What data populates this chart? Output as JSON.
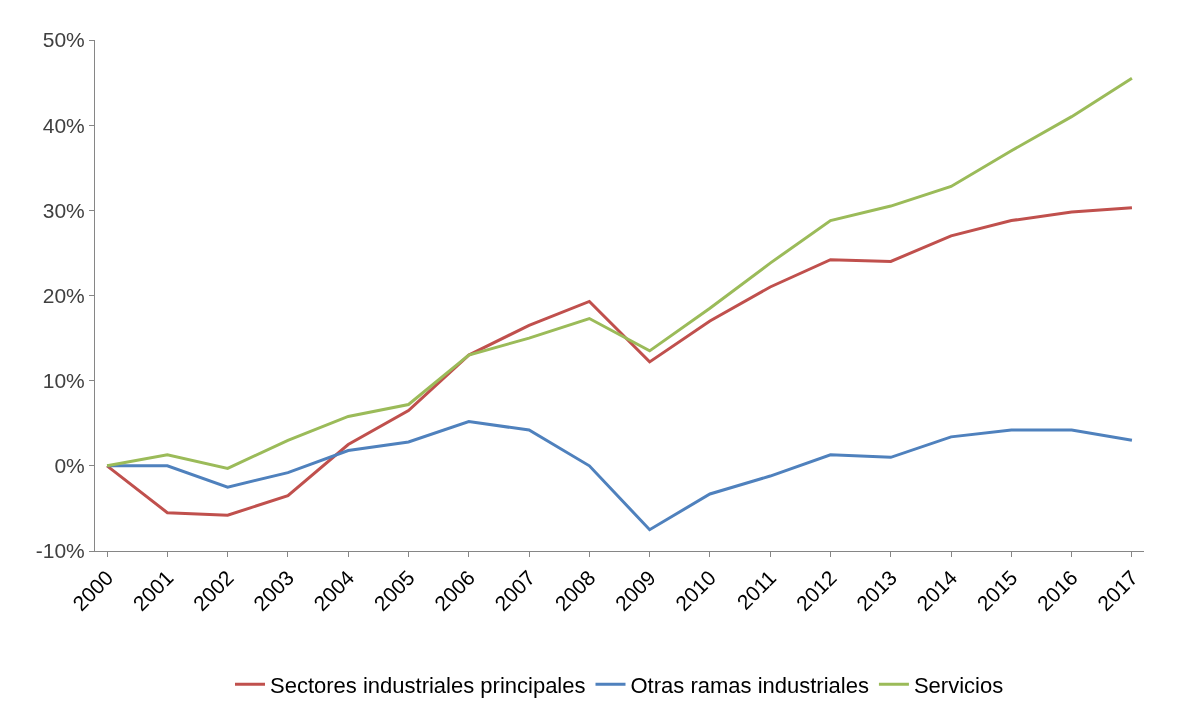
{
  "chart_data": {
    "type": "line",
    "categories": [
      "2000",
      "2001",
      "2002",
      "2003",
      "2004",
      "2005",
      "2006",
      "2007",
      "2008",
      "2009",
      "2010",
      "2011",
      "2012",
      "2013",
      "2014",
      "2015",
      "2016",
      "2017"
    ],
    "series": [
      {
        "name": "Sectores industriales principales",
        "color": "#c0504d",
        "values": [
          0,
          -5.5,
          -5.8,
          -3.5,
          2.5,
          6.5,
          13,
          16.5,
          19.3,
          12.2,
          17,
          21,
          24.2,
          24,
          27,
          28.8,
          29.8,
          30.3
        ]
      },
      {
        "name": "Otras ramas industriales",
        "color": "#4f81bd",
        "values": [
          0,
          0,
          -2.5,
          -0.8,
          1.8,
          2.8,
          5.2,
          4.2,
          0,
          -7.5,
          -3.3,
          -1.2,
          1.3,
          1,
          3.4,
          4.2,
          4.2,
          3
        ]
      },
      {
        "name": "Servicios",
        "color": "#9bbb59",
        "values": [
          0,
          1.3,
          -0.3,
          3,
          5.8,
          7.2,
          13,
          15,
          17.3,
          13.5,
          18.5,
          23.8,
          28.8,
          30.5,
          32.8,
          37,
          41,
          45.5
        ]
      }
    ],
    "ylim": [
      -10,
      50
    ],
    "yticks": [
      {
        "value": -10,
        "label": "-10%"
      },
      {
        "value": 0,
        "label": "0%"
      },
      {
        "value": 10,
        "label": "10%"
      },
      {
        "value": 20,
        "label": "20%"
      },
      {
        "value": 30,
        "label": "30%"
      },
      {
        "value": 40,
        "label": "40%"
      },
      {
        "value": 50,
        "label": "50%"
      }
    ],
    "grid": false,
    "legend": "bottom",
    "marker": "none",
    "line_style": "solid"
  }
}
